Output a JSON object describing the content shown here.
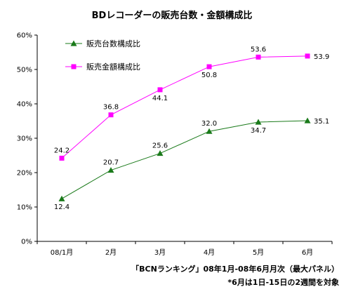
{
  "chart_data": {
    "type": "line",
    "title": "BDレコーダーの販売台数・金額構成比",
    "categories": [
      "08/1月",
      "2月",
      "3月",
      "4月",
      "5月",
      "6月"
    ],
    "ylim": [
      0,
      60
    ],
    "yticks": [
      0,
      10,
      20,
      30,
      40,
      50,
      60
    ],
    "ytick_labels": [
      "0%",
      "10%",
      "20%",
      "30%",
      "40%",
      "50%",
      "60%"
    ],
    "grid": false,
    "legend_position": "top-left",
    "series": [
      {
        "name": "販売台数構成比",
        "color": "#1a7a1a",
        "marker": "triangle",
        "values": [
          12.4,
          20.7,
          25.6,
          32.0,
          34.7,
          35.1
        ],
        "labels": [
          "12.4",
          "20.7",
          "25.6",
          "32.0",
          "34.7",
          "35.1"
        ],
        "label_pos": [
          "below",
          "above",
          "above",
          "above",
          "below",
          "right"
        ]
      },
      {
        "name": "販売金額構成比",
        "color": "#ff00ff",
        "marker": "square",
        "values": [
          24.2,
          36.8,
          44.1,
          50.8,
          53.6,
          53.9
        ],
        "labels": [
          "24.2",
          "36.8",
          "44.1",
          "50.8",
          "53.6",
          "53.9"
        ],
        "label_pos": [
          "above",
          "above",
          "below",
          "below",
          "above",
          "right"
        ]
      }
    ],
    "source_lines": [
      "「BCNランキング」08年1月-08年6月月次（最大パネル）",
      "*6月は1日-15日の2週間を対象"
    ]
  }
}
